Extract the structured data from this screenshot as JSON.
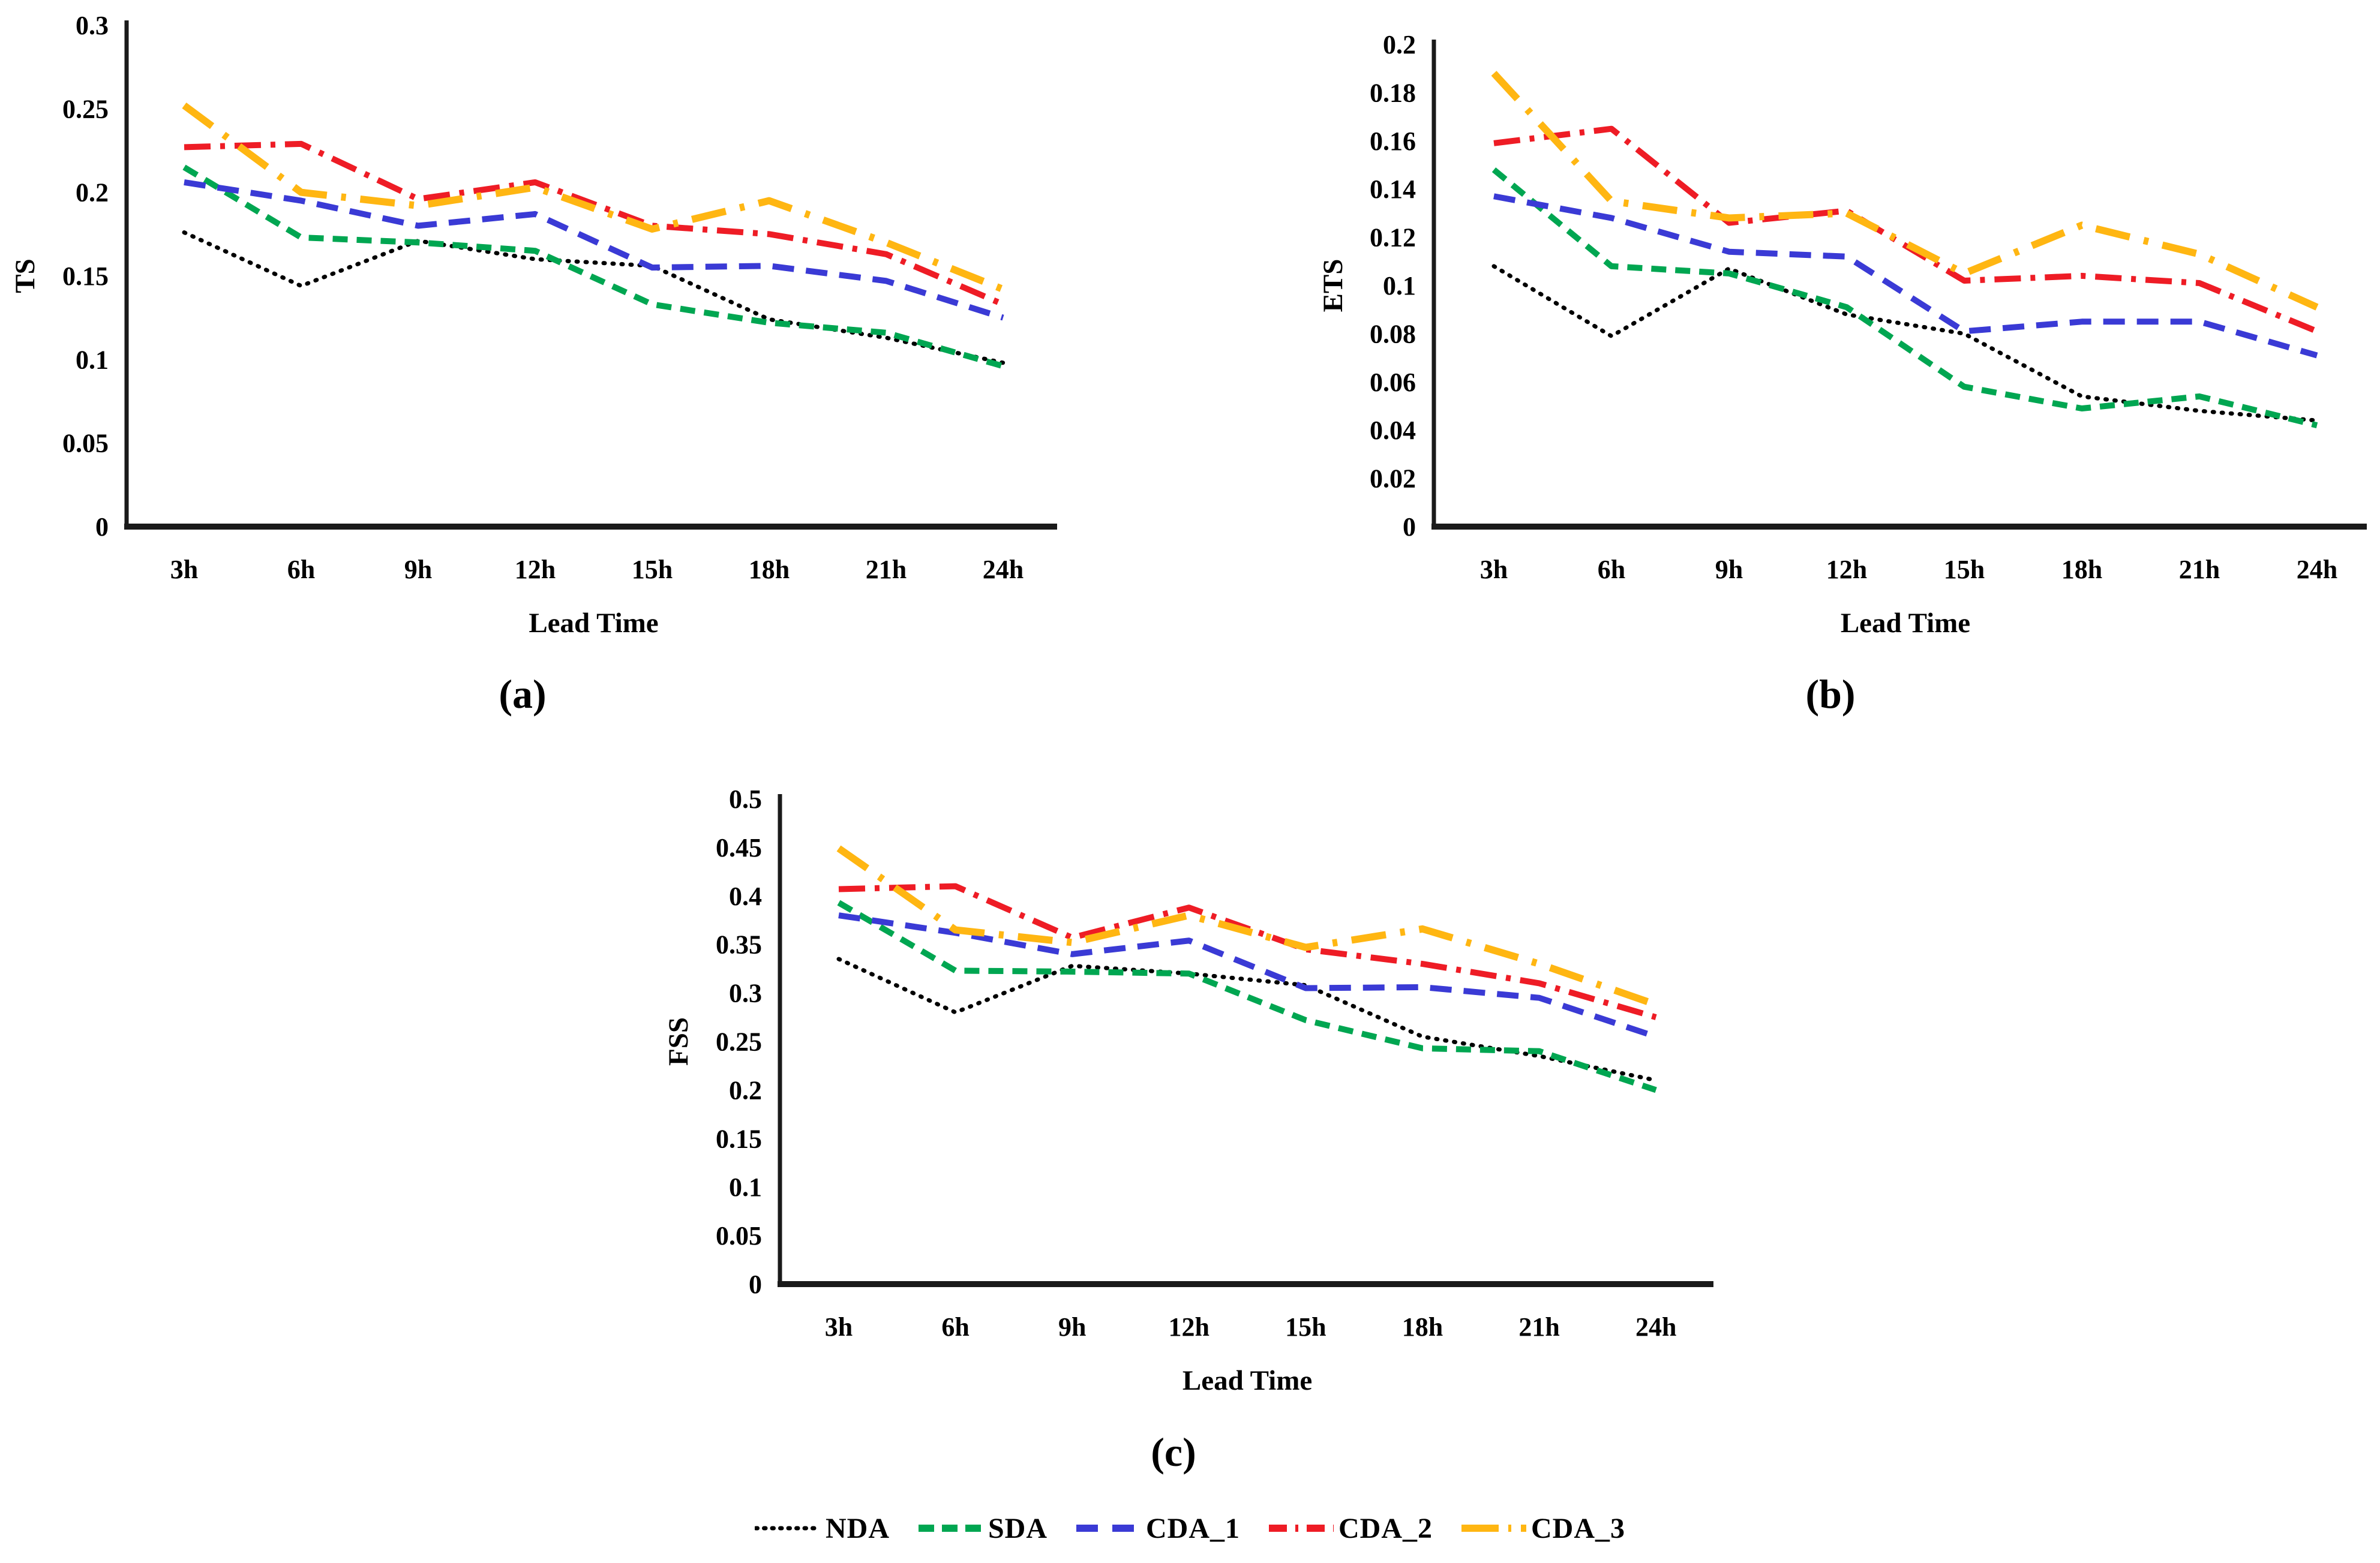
{
  "figure": {
    "type": "multi-panel-line-figure",
    "panel_count": 3,
    "background": "#ffffff",
    "legend_position": "bottom-center"
  },
  "colors": {
    "nda": "#000000",
    "sda": "#00A651",
    "cda1": "#3A3AD5",
    "cda2": "#EE1C25",
    "cda3": "#FFB612",
    "axis": "#1a1a1a"
  },
  "chart_data": [
    {
      "id": "a",
      "type": "line",
      "caption": "(a)",
      "ylabel": "TS",
      "xlabel": "Lead Time",
      "categories": [
        "3h",
        "6h",
        "9h",
        "12h",
        "15h",
        "18h",
        "21h",
        "24h"
      ],
      "ylim": [
        0,
        0.3
      ],
      "ytick_step": 0.05,
      "grid": false,
      "series": [
        {
          "name": "NDA",
          "color": "#000000",
          "style": "dotted",
          "values": [
            0.176,
            0.144,
            0.171,
            0.16,
            0.156,
            0.124,
            0.113,
            0.098
          ]
        },
        {
          "name": "SDA",
          "color": "#00A651",
          "style": "dash",
          "values": [
            0.215,
            0.173,
            0.17,
            0.165,
            0.133,
            0.122,
            0.116,
            0.096
          ]
        },
        {
          "name": "CDA_1",
          "color": "#3A3AD5",
          "style": "long-dash",
          "values": [
            0.206,
            0.195,
            0.18,
            0.187,
            0.155,
            0.156,
            0.147,
            0.125
          ]
        },
        {
          "name": "CDA_2",
          "color": "#EE1C25",
          "style": "dash-dot",
          "values": [
            0.227,
            0.229,
            0.196,
            0.206,
            0.18,
            0.175,
            0.163,
            0.133
          ]
        },
        {
          "name": "CDA_3",
          "color": "#FFB612",
          "style": "long-dash-dot",
          "values": [
            0.252,
            0.2,
            0.192,
            0.203,
            0.178,
            0.195,
            0.17,
            0.142
          ]
        }
      ]
    },
    {
      "id": "b",
      "type": "line",
      "caption": "(b)",
      "ylabel": "ETS",
      "xlabel": "Lead Time",
      "categories": [
        "3h",
        "6h",
        "9h",
        "12h",
        "15h",
        "18h",
        "21h",
        "24h"
      ],
      "ylim": [
        0,
        0.2
      ],
      "ytick_step": 0.02,
      "grid": false,
      "series": [
        {
          "name": "NDA",
          "color": "#000000",
          "style": "dotted",
          "values": [
            0.108,
            0.079,
            0.107,
            0.088,
            0.08,
            0.054,
            0.048,
            0.044
          ]
        },
        {
          "name": "SDA",
          "color": "#00A651",
          "style": "dash",
          "values": [
            0.148,
            0.108,
            0.105,
            0.091,
            0.058,
            0.049,
            0.054,
            0.042
          ]
        },
        {
          "name": "CDA_1",
          "color": "#3A3AD5",
          "style": "long-dash",
          "values": [
            0.137,
            0.128,
            0.114,
            0.112,
            0.081,
            0.085,
            0.085,
            0.071
          ]
        },
        {
          "name": "CDA_2",
          "color": "#EE1C25",
          "style": "dash-dot",
          "values": [
            0.159,
            0.165,
            0.126,
            0.131,
            0.102,
            0.104,
            0.101,
            0.081
          ]
        },
        {
          "name": "CDA_3",
          "color": "#FFB612",
          "style": "long-dash-dot",
          "values": [
            0.188,
            0.135,
            0.128,
            0.13,
            0.105,
            0.125,
            0.113,
            0.091
          ]
        }
      ]
    },
    {
      "id": "c",
      "type": "line",
      "caption": "(c)",
      "ylabel": "FSS",
      "xlabel": "Lead Time",
      "categories": [
        "3h",
        "6h",
        "9h",
        "12h",
        "15h",
        "18h",
        "21h",
        "24h"
      ],
      "ylim": [
        0,
        0.5
      ],
      "ytick_step": 0.05,
      "grid": false,
      "series": [
        {
          "name": "NDA",
          "color": "#000000",
          "style": "dotted",
          "values": [
            0.335,
            0.28,
            0.328,
            0.32,
            0.308,
            0.255,
            0.235,
            0.21
          ]
        },
        {
          "name": "SDA",
          "color": "#00A651",
          "style": "dash",
          "values": [
            0.393,
            0.323,
            0.322,
            0.32,
            0.272,
            0.243,
            0.24,
            0.2
          ]
        },
        {
          "name": "CDA_1",
          "color": "#3A3AD5",
          "style": "long-dash",
          "values": [
            0.38,
            0.362,
            0.34,
            0.354,
            0.305,
            0.306,
            0.295,
            0.255
          ]
        },
        {
          "name": "CDA_2",
          "color": "#EE1C25",
          "style": "dash-dot",
          "values": [
            0.407,
            0.41,
            0.357,
            0.388,
            0.345,
            0.33,
            0.31,
            0.275
          ]
        },
        {
          "name": "CDA_3",
          "color": "#FFB612",
          "style": "long-dash-dot",
          "values": [
            0.449,
            0.365,
            0.352,
            0.38,
            0.347,
            0.366,
            0.33,
            0.288
          ]
        }
      ]
    }
  ],
  "legend": {
    "labels": [
      "NDA",
      "SDA",
      "CDA_1",
      "CDA_2",
      "CDA_3"
    ]
  }
}
